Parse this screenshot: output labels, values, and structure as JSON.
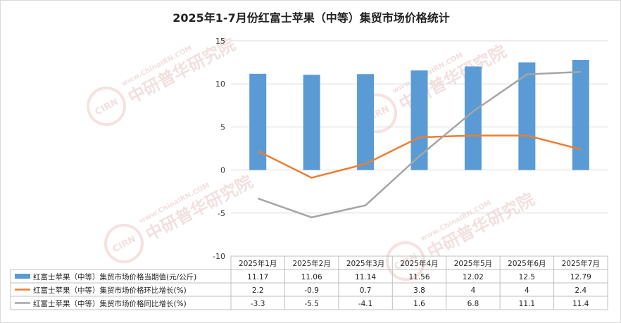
{
  "chart_data": {
    "type": "bar+line",
    "title": "2025年1-7月份红富士苹果（中等）集贸市场价格统计",
    "categories": [
      "2025年1月",
      "2025年2月",
      "2025年3月",
      "2025年4月",
      "2025年5月",
      "2025年6月",
      "2025年7月"
    ],
    "ylim": [
      -10,
      15
    ],
    "yticks": [
      "15",
      "10",
      "5",
      "0",
      "-5",
      "-10"
    ],
    "grid": true,
    "series": [
      {
        "name": "红富士苹果（中等）集贸市场价格当期值(元/公斤)",
        "type": "bar",
        "color": "#5b9bd5",
        "values": [
          11.17,
          11.06,
          11.14,
          11.56,
          12.02,
          12.5,
          12.79
        ],
        "labels": [
          "11.17",
          "11.06",
          "11.14",
          "11.56",
          "12.02",
          "12.5",
          "12.79"
        ]
      },
      {
        "name": "红富士苹果（中等）集贸市场价格环比增长(%)",
        "type": "line",
        "color": "#ed7d31",
        "values": [
          2.2,
          -0.9,
          0.7,
          3.8,
          4,
          4,
          2.4
        ],
        "labels": [
          "2.2",
          "-0.9",
          "0.7",
          "3.8",
          "4",
          "4",
          "2.4"
        ]
      },
      {
        "name": "红富士苹果（中等）集贸市场价格同比增长(%)",
        "type": "line",
        "color": "#a5a5a5",
        "values": [
          -3.3,
          -5.5,
          -4.1,
          1.6,
          6.8,
          11.1,
          11.4
        ],
        "labels": [
          "-3.3",
          "-5.5",
          "-4.1",
          "1.6",
          "6.8",
          "11.1",
          "11.4"
        ]
      }
    ]
  },
  "watermark": {
    "url": "www.ChinaIRN.COM",
    "brand": "中研普华研究院",
    "logo": "CIRN"
  }
}
